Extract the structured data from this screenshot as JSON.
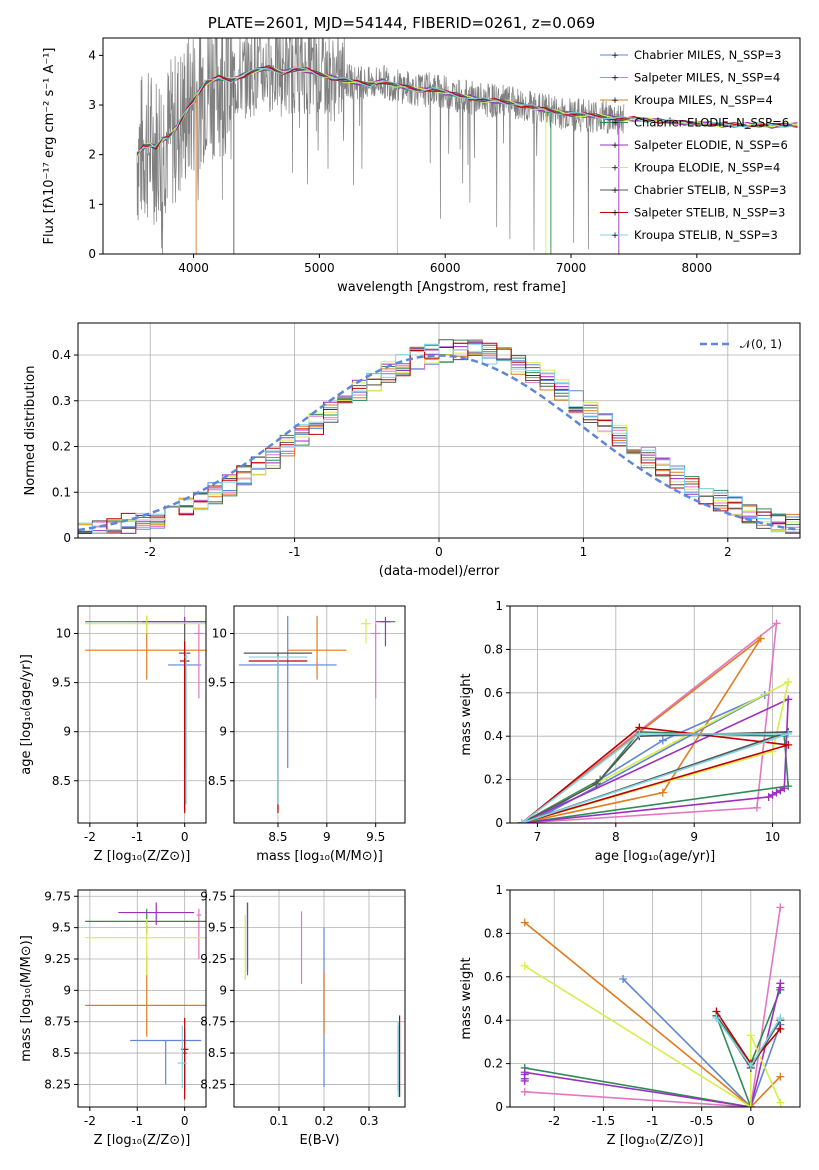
{
  "colors": [
    "#5f86d9",
    "#e377c2",
    "#e07b1f",
    "#2e8b57",
    "#9b30c0",
    "#d7ee4a",
    "#555555",
    "#c00000",
    "#7fd3e6"
  ],
  "chart_data": [
    {
      "id": "spectrum",
      "type": "line",
      "title": "PLATE=2601, MJD=54144, FIBERID=0261, z=0.069",
      "xlabel": "wavelength [Angstrom, rest frame]",
      "ylabel": "Flux [fλ10⁻¹⁷ erg cm⁻² s⁻¹ A⁻¹]",
      "xlim": [
        3280,
        8820
      ],
      "ylim": [
        0,
        4.35
      ],
      "xticks": [
        4000,
        5000,
        6000,
        7000,
        8000
      ],
      "yticks": [
        0,
        1,
        2,
        3,
        4
      ],
      "grid": false,
      "legend_position": "top-right",
      "data_color": "#808080",
      "model_x": [
        3550,
        3600,
        3650,
        3700,
        3750,
        3800,
        3850,
        3900,
        3950,
        4000,
        4050,
        4100,
        4200,
        4300,
        4400,
        4500,
        4600,
        4700,
        4800,
        4900,
        5000,
        5100,
        5200,
        5300,
        5400,
        5500,
        5600,
        5700,
        5800,
        5900,
        6000,
        6100,
        6200,
        6300,
        6400,
        6500,
        6600,
        6700,
        6800,
        6900,
        7000,
        7100,
        7200,
        7300,
        7400,
        7500,
        7600,
        7700,
        7800,
        7900,
        8000,
        8100,
        8200,
        8300,
        8400,
        8500,
        8600,
        8700,
        8800
      ],
      "model_y": [
        2.0,
        2.15,
        2.2,
        2.15,
        2.3,
        2.35,
        2.5,
        2.7,
        2.9,
        3.1,
        3.3,
        3.45,
        3.55,
        3.5,
        3.6,
        3.7,
        3.75,
        3.65,
        3.72,
        3.7,
        3.62,
        3.55,
        3.5,
        3.45,
        3.42,
        3.48,
        3.4,
        3.35,
        3.3,
        3.32,
        3.25,
        3.2,
        3.15,
        3.1,
        3.08,
        3.05,
        3.0,
        2.95,
        2.9,
        2.85,
        2.82,
        2.8,
        2.78,
        2.75,
        2.72,
        2.72,
        2.7,
        2.68,
        2.66,
        2.64,
        2.63,
        2.62,
        2.6,
        2.6,
        2.6,
        2.6,
        2.58,
        2.6,
        2.6
      ],
      "series": [
        {
          "name": "Chabrier MILES, N_SSP=3"
        },
        {
          "name": "Salpeter MILES, N_SSP=4"
        },
        {
          "name": "Kroupa MILES, N_SSP=4"
        },
        {
          "name": "Chabrier ELODIE, N_SSP=6"
        },
        {
          "name": "Salpeter ELODIE, N_SSP=6"
        },
        {
          "name": "Kroupa ELODIE, N_SSP=4"
        },
        {
          "name": "Chabrier STELIB, N_SSP=3"
        },
        {
          "name": "Salpeter STELIB, N_SSP=3"
        },
        {
          "name": "Kroupa STELIB, N_SSP=3"
        }
      ]
    },
    {
      "id": "residuals",
      "type": "line",
      "title": "",
      "xlabel": "(data-model)/error",
      "ylabel": "Normed distribution",
      "xlim": [
        -2.5,
        2.5
      ],
      "ylim": [
        0,
        0.47
      ],
      "xticks": [
        -2,
        -1,
        0,
        1,
        2
      ],
      "yticks": [
        0.0,
        0.1,
        0.2,
        0.3,
        0.4
      ],
      "grid": true,
      "legend_position": "top-right",
      "legend": "𝒩(0, 1)",
      "gaussian_mean": 0,
      "gaussian_sigma": 1,
      "bin_width": 0.1
    },
    {
      "id": "age_vs_Z",
      "type": "scatter",
      "xlabel": "Z [log₁₀(Z/Z⊙)]",
      "ylabel": "age  [log₁₀(age/yr)]",
      "xlim": [
        -2.25,
        0.45
      ],
      "ylim": [
        8.07,
        10.28
      ],
      "xticks": [
        -2,
        -1,
        0
      ],
      "yticks": [
        8.5,
        9.0,
        9.5,
        10.0
      ],
      "grid": true,
      "points": [
        {
          "series": 0,
          "x": 0.0,
          "y": 9.68,
          "xerr": 0.35,
          "yerr": [
            1.05,
            0.0
          ]
        },
        {
          "series": 1,
          "x": 0.3,
          "y": 10.0,
          "xerr": 0.1,
          "yerr": [
            0.66,
            0.1
          ]
        },
        {
          "series": 2,
          "x": -0.8,
          "y": 9.83,
          "xerr": 1.3,
          "yerr": [
            0.3,
            0.35
          ]
        },
        {
          "series": 3,
          "x": -0.3,
          "y": 10.12,
          "xerr": 1.8,
          "yerr": [
            0.0,
            0.0
          ]
        },
        {
          "series": 4,
          "x": 0.0,
          "y": 10.12,
          "xerr": 0.9,
          "yerr": [
            0.0,
            0.05
          ]
        },
        {
          "series": 5,
          "x": -0.8,
          "y": 10.1,
          "xerr": 1.3,
          "yerr": [
            0.1,
            0.08
          ]
        },
        {
          "series": 6,
          "x": 0.0,
          "y": 9.8,
          "xerr": 0.12,
          "yerr": [
            1.6,
            0.3
          ]
        },
        {
          "series": 7,
          "x": 0.0,
          "y": 9.72,
          "xerr": 0.1,
          "yerr": [
            1.55,
            0.2
          ]
        },
        {
          "series": 8,
          "x": 0.03,
          "y": 9.76,
          "xerr": 0.03,
          "yerr": [
            1.5,
            0.05
          ]
        }
      ]
    },
    {
      "id": "age_vs_mass",
      "type": "scatter",
      "xlabel": "mass [log₁₀(M/M⊙)]",
      "ylabel": "",
      "xlim": [
        8.05,
        9.8
      ],
      "ylim": [
        8.07,
        10.28
      ],
      "xticks": [
        8.5,
        9.0,
        9.5
      ],
      "yticks": [
        8.5,
        9.0,
        9.5,
        10.0
      ],
      "grid": true,
      "points": [
        {
          "series": 0,
          "x": 8.6,
          "y": 9.68,
          "xerr": 0.5,
          "yerr": [
            1.05,
            0.5
          ]
        },
        {
          "series": 1,
          "x": 9.5,
          "y": 10.0,
          "xerr": 0.05,
          "yerr": [
            0.66,
            0.1
          ]
        },
        {
          "series": 2,
          "x": 8.9,
          "y": 9.83,
          "xerr": 0.3,
          "yerr": [
            0.3,
            0.35
          ]
        },
        {
          "series": 3,
          "x": 9.6,
          "y": 10.12,
          "xerr": 0.05,
          "yerr": [
            0.0,
            0.0
          ]
        },
        {
          "series": 4,
          "x": 9.6,
          "y": 10.12,
          "xerr": 0.1,
          "yerr": [
            0.25,
            0.05
          ]
        },
        {
          "series": 5,
          "x": 9.4,
          "y": 10.1,
          "xerr": 0.05,
          "yerr": [
            0.2,
            0.05
          ]
        },
        {
          "series": 6,
          "x": 8.5,
          "y": 9.8,
          "xerr": 0.35,
          "yerr": [
            1.6,
            0.0
          ]
        },
        {
          "series": 7,
          "x": 8.5,
          "y": 9.72,
          "xerr": 0.3,
          "yerr": [
            1.55,
            0.0
          ]
        },
        {
          "series": 8,
          "x": 8.5,
          "y": 9.76,
          "xerr": 0.3,
          "yerr": [
            1.5,
            0.0
          ]
        }
      ]
    },
    {
      "id": "weight_vs_age",
      "type": "line",
      "xlabel": "age  [log₁₀(age/yr)]",
      "ylabel": "mass weight",
      "xlim": [
        6.65,
        10.35
      ],
      "ylim": [
        0,
        1.0
      ],
      "xticks": [
        7,
        8,
        9,
        10
      ],
      "yticks": [
        0.0,
        0.2,
        0.4,
        0.6,
        0.8,
        1.0
      ],
      "grid": true,
      "series": [
        {
          "series": 0,
          "x": [
            6.9,
            8.6,
            9.9,
            6.9
          ],
          "y": [
            0.0,
            0.38,
            0.59,
            0.0
          ]
        },
        {
          "series": 1,
          "x": [
            6.8,
            9.8,
            10.05,
            6.8
          ],
          "y": [
            0.0,
            0.07,
            0.92,
            0.0
          ]
        },
        {
          "series": 2,
          "x": [
            6.8,
            8.6,
            9.85,
            6.8
          ],
          "y": [
            0.0,
            0.14,
            0.85,
            0.0
          ]
        },
        {
          "series": 3,
          "x": [
            6.8,
            7.8,
            8.3,
            10.15,
            10.2,
            6.8
          ],
          "y": [
            0.0,
            0.2,
            0.42,
            0.4,
            0.17,
            0.0
          ]
        },
        {
          "series": 4,
          "x": [
            6.8,
            9.95,
            10.0,
            10.05,
            10.1,
            10.15,
            10.2,
            6.8
          ],
          "y": [
            0.0,
            0.12,
            0.13,
            0.14,
            0.15,
            0.16,
            0.57,
            0.0
          ]
        },
        {
          "series": 5,
          "x": [
            6.8,
            10.0,
            10.2,
            6.8
          ],
          "y": [
            0.0,
            0.33,
            0.65,
            0.0
          ]
        },
        {
          "series": 6,
          "x": [
            6.8,
            7.75,
            8.3,
            10.2,
            6.8
          ],
          "y": [
            0.0,
            0.18,
            0.4,
            0.42,
            0.0
          ]
        },
        {
          "series": 7,
          "x": [
            6.8,
            8.3,
            10.2,
            6.8
          ],
          "y": [
            0.0,
            0.44,
            0.36,
            0.0
          ]
        },
        {
          "series": 8,
          "x": [
            6.8,
            8.3,
            10.2,
            6.8
          ],
          "y": [
            0.0,
            0.41,
            0.41,
            0.0
          ]
        }
      ]
    },
    {
      "id": "mass_vs_Z",
      "type": "scatter",
      "xlabel": "Z [log₁₀(Z/Z⊙)]",
      "ylabel": "mass [log₁₀(M/M⊙)]",
      "xlim": [
        -2.25,
        0.45
      ],
      "ylim": [
        8.07,
        9.8
      ],
      "xticks": [
        -2,
        -1,
        0
      ],
      "yticks": [
        8.25,
        8.5,
        8.75,
        9.0,
        9.25,
        9.5,
        9.75
      ],
      "grid": true,
      "points": [
        {
          "series": 0,
          "x": -0.4,
          "y": 8.6,
          "xerr": 0.75,
          "yerr": [
            0.35,
            0.0
          ]
        },
        {
          "series": 1,
          "x": 0.3,
          "y": 9.6,
          "xerr": 0.05,
          "yerr": [
            0.35,
            0.05
          ]
        },
        {
          "series": 2,
          "x": -0.8,
          "y": 8.88,
          "xerr": 1.3,
          "yerr": [
            0.25,
            0.4
          ]
        },
        {
          "series": 3,
          "x": -0.8,
          "y": 9.55,
          "xerr": 1.3,
          "yerr": [
            0.1,
            0.1
          ]
        },
        {
          "series": 4,
          "x": -0.6,
          "y": 9.62,
          "xerr": 0.8,
          "yerr": [
            0.1,
            0.08
          ]
        },
        {
          "series": 5,
          "x": -0.8,
          "y": 9.42,
          "xerr": 1.3,
          "yerr": [
            0.3,
            0.15
          ]
        },
        {
          "series": 6,
          "x": 0.0,
          "y": 8.5,
          "xerr": 0.05,
          "yerr": [
            0.3,
            0.2
          ]
        },
        {
          "series": 7,
          "x": 0.0,
          "y": 8.53,
          "xerr": 0.08,
          "yerr": [
            0.4,
            0.25
          ]
        },
        {
          "series": 8,
          "x": -0.05,
          "y": 8.42,
          "xerr": 0.1,
          "yerr": [
            0.2,
            0.3
          ]
        }
      ]
    },
    {
      "id": "mass_vs_ebv",
      "type": "scatter",
      "xlabel": "E(B-V)",
      "ylabel": "",
      "xlim": [
        0.0,
        0.38
      ],
      "ylim": [
        8.07,
        9.8
      ],
      "xticks": [
        0.1,
        0.2,
        0.3
      ],
      "yticks": [
        8.25,
        8.5,
        8.75,
        9.0,
        9.25,
        9.5,
        9.75
      ],
      "grid": true,
      "points": [
        {
          "series": 0,
          "x": 0.2,
          "y": 8.85,
          "xerr": 0.0,
          "yerr": [
            0.62,
            0.65
          ]
        },
        {
          "series": 1,
          "x": 0.15,
          "y": 9.35,
          "xerr": 0.0,
          "yerr": [
            0.3,
            0.28
          ]
        },
        {
          "series": 2,
          "x": 0.2,
          "y": 8.9,
          "xerr": 0.0,
          "yerr": [
            0.25,
            0.25
          ]
        },
        {
          "series": 3,
          "x": 0.03,
          "y": 9.4,
          "xerr": 0.0,
          "yerr": [
            0.28,
            0.3
          ]
        },
        {
          "series": 4,
          "x": 0.03,
          "y": 9.45,
          "xerr": 0.0,
          "yerr": [
            0.3,
            0.25
          ]
        },
        {
          "series": 5,
          "x": 0.025,
          "y": 9.3,
          "xerr": 0.0,
          "yerr": [
            0.22,
            0.3
          ]
        },
        {
          "series": 6,
          "x": 0.365,
          "y": 8.5,
          "xerr": 0.0,
          "yerr": [
            0.3,
            0.22
          ]
        },
        {
          "series": 7,
          "x": 0.368,
          "y": 8.55,
          "xerr": 0.0,
          "yerr": [
            0.4,
            0.25
          ]
        },
        {
          "series": 8,
          "x": 0.365,
          "y": 8.45,
          "xerr": 0.0,
          "yerr": [
            0.3,
            0.3
          ]
        }
      ]
    },
    {
      "id": "weight_vs_Z",
      "type": "line",
      "xlabel": "Z [log₁₀(Z/Z⊙)]",
      "ylabel": "mass weight",
      "xlim": [
        -2.45,
        0.5
      ],
      "ylim": [
        0,
        1.0
      ],
      "xticks": [
        -2.0,
        -1.5,
        -1.0,
        -0.5,
        0.0
      ],
      "yticks": [
        0.0,
        0.2,
        0.4,
        0.6,
        0.8,
        1.0
      ],
      "grid": true,
      "series": [
        {
          "series": 0,
          "x": [
            -1.3,
            0.0,
            0.3
          ],
          "y": [
            0.59,
            0.0,
            0.38
          ]
        },
        {
          "series": 1,
          "x": [
            -2.3,
            0.0,
            0.3
          ],
          "y": [
            0.07,
            0.0,
            0.92
          ]
        },
        {
          "series": 2,
          "x": [
            -2.3,
            0.0,
            0.3
          ],
          "y": [
            0.85,
            0.0,
            0.14
          ]
        },
        {
          "series": 3,
          "x": [
            -2.3,
            0.0,
            -0.35,
            0.0,
            0.3
          ],
          "y": [
            0.18,
            0.0,
            0.42,
            0.2,
            0.54
          ]
        },
        {
          "series": 4,
          "x": [
            -2.3,
            -2.3,
            -2.3,
            -2.3,
            0.0,
            0.3,
            0.3
          ],
          "y": [
            0.12,
            0.13,
            0.15,
            0.16,
            0.0,
            0.57,
            0.55
          ]
        },
        {
          "series": 5,
          "x": [
            -2.3,
            0.0,
            0.0,
            0.3
          ],
          "y": [
            0.65,
            0.0,
            0.33,
            0.02
          ]
        },
        {
          "series": 6,
          "x": [
            -0.35,
            0.0,
            0.3
          ],
          "y": [
            0.42,
            0.18,
            0.4
          ]
        },
        {
          "series": 7,
          "x": [
            -0.35,
            0.0,
            0.3
          ],
          "y": [
            0.44,
            0.2,
            0.36
          ]
        },
        {
          "series": 8,
          "x": [
            -0.35,
            0.0,
            0.3
          ],
          "y": [
            0.41,
            0.19,
            0.41
          ]
        }
      ]
    }
  ]
}
